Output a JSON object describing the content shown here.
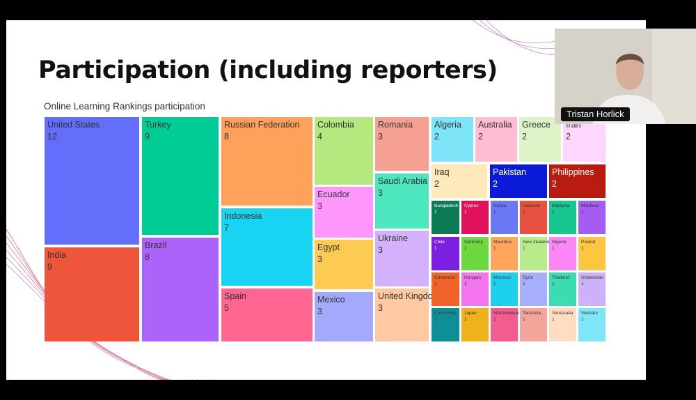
{
  "slide": {
    "title": "Participation (including reporters)"
  },
  "video": {
    "participant_name": "Tristan Horlick"
  },
  "colors": {
    "background": "#000000",
    "slide": "#ffffff",
    "accent_decoration": "#e6393f"
  },
  "chart_data": {
    "type": "treemap",
    "title": "Online Learning Rankings participation",
    "cells": [
      {
        "name": "United States",
        "value": 12,
        "color": "#636efa"
      },
      {
        "name": "India",
        "value": 9,
        "color": "#ef553b"
      },
      {
        "name": "Turkey",
        "value": 9,
        "color": "#00cc96"
      },
      {
        "name": "Brazil",
        "value": 8,
        "color": "#ab63fa"
      },
      {
        "name": "Russian Federation",
        "value": 8,
        "color": "#ffa15a"
      },
      {
        "name": "Indonesia",
        "value": 7,
        "color": "#19d3f3"
      },
      {
        "name": "Spain",
        "value": 5,
        "color": "#ff6692"
      },
      {
        "name": "Colombia",
        "value": 4,
        "color": "#b6e880"
      },
      {
        "name": "Ecuador",
        "value": 3,
        "color": "#ff97ff"
      },
      {
        "name": "Egypt",
        "value": 3,
        "color": "#fecb52"
      },
      {
        "name": "Mexico",
        "value": 3,
        "color": "#a3a9fb"
      },
      {
        "name": "Romania",
        "value": 3,
        "color": "#f5a092"
      },
      {
        "name": "Saudi Arabia",
        "value": 3,
        "color": "#4ee6bf"
      },
      {
        "name": "Ukraine",
        "value": 3,
        "color": "#d3b1fb"
      },
      {
        "name": "United Kingdom",
        "value": 3,
        "color": "#ffc9a3"
      },
      {
        "name": "Algeria",
        "value": 2,
        "color": "#7ee4f7"
      },
      {
        "name": "Australia",
        "value": 2,
        "color": "#ffbdd3"
      },
      {
        "name": "Greece",
        "value": 2,
        "color": "#dcf4c7"
      },
      {
        "name": "Iran",
        "value": 2,
        "color": "#ffd6ff"
      },
      {
        "name": "Iraq",
        "value": 2,
        "color": "#fee9bb"
      },
      {
        "name": "Pakistan",
        "value": 2,
        "color": "#0b1ad6"
      },
      {
        "name": "Philippines",
        "value": 2,
        "color": "#b81b0f"
      },
      {
        "name": "Bangladesh",
        "value": 1,
        "color": "#0c7a55"
      },
      {
        "name": "Cyprus",
        "value": 1,
        "color": "#e0115a"
      },
      {
        "name": "Kenya",
        "value": 1,
        "color": "#6a78f6"
      },
      {
        "name": "Lebanon",
        "value": 1,
        "color": "#e8513f"
      },
      {
        "name": "Malaysia",
        "value": 1,
        "color": "#18c690"
      },
      {
        "name": "Maldives",
        "value": 1,
        "color": "#a55cf2"
      },
      {
        "name": "Chile",
        "value": 1,
        "color": "#7b1fe0"
      },
      {
        "name": "Germany",
        "value": 1,
        "color": "#6cd83f"
      },
      {
        "name": "Mauritius",
        "value": 1,
        "color": "#ffa65c"
      },
      {
        "name": "New Zealand",
        "value": 1,
        "color": "#b9eb8c"
      },
      {
        "name": "Nigeria",
        "value": 1,
        "color": "#fd86f6"
      },
      {
        "name": "Poland",
        "value": 1,
        "color": "#fcc643"
      },
      {
        "name": "Cameroon",
        "value": 1,
        "color": "#f16429"
      },
      {
        "name": "Hungary",
        "value": 1,
        "color": "#f474f0"
      },
      {
        "name": "Morocco",
        "value": 1,
        "color": "#1fd0ee"
      },
      {
        "name": "Syria",
        "value": 1,
        "color": "#a7aefb"
      },
      {
        "name": "Thailand",
        "value": 1,
        "color": "#3bdcb2"
      },
      {
        "name": "Uzbekistan",
        "value": 1,
        "color": "#cdb1fa"
      },
      {
        "name": "Costa Rica",
        "value": 1,
        "color": "#0f8e98"
      },
      {
        "name": "Japan",
        "value": 1,
        "color": "#f0b21c"
      },
      {
        "name": "Mozambique",
        "value": 1,
        "color": "#f25c8e"
      },
      {
        "name": "Tanzania",
        "value": 1,
        "color": "#f4a49a"
      },
      {
        "name": "Venezuela",
        "value": 1,
        "color": "#ffdcc2"
      },
      {
        "name": "Vietnam",
        "value": 1,
        "color": "#7fe6f8"
      }
    ]
  }
}
